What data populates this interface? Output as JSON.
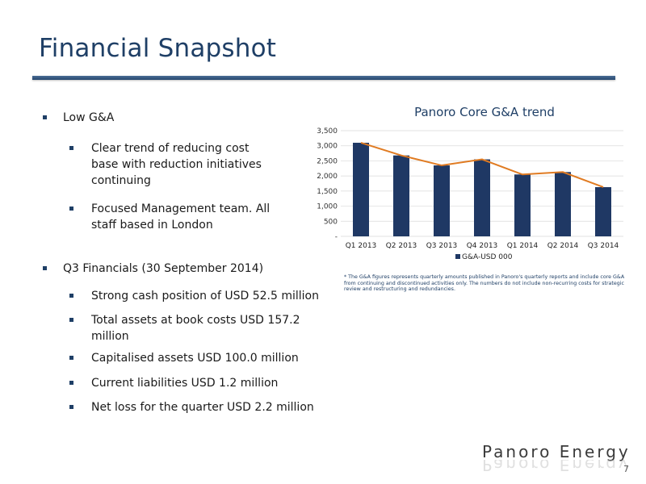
{
  "slide": {
    "title": "Financial Snapshot",
    "page_number": "7",
    "brand": "Panoro Energy"
  },
  "bullets": [
    {
      "level": 1,
      "text": "Low G&A"
    },
    {
      "level": 2,
      "text": "Clear trend of reducing cost base with reduction initiatives continuing"
    },
    {
      "level": 2,
      "text": "Focused Management team.  All staff based in London"
    },
    {
      "level": 1,
      "text": "Q3 Financials (30 September 2014)"
    },
    {
      "level": 2,
      "text": "Strong cash position of USD 52.5 million"
    },
    {
      "level": 2,
      "text": "Total assets at book costs USD 157.2 million"
    },
    {
      "level": 2,
      "text": "Capitalised assets USD 100.0 million"
    },
    {
      "level": 2,
      "text": "Current liabilities USD 1.2 million"
    },
    {
      "level": 2,
      "text": "Net loss for the quarter USD 2.2 million"
    }
  ],
  "chart_data": {
    "type": "bar",
    "title": "Panoro Core G&A trend",
    "categories": [
      "Q1 2013",
      "Q2 2013",
      "Q3 2013",
      "Q4 2013",
      "Q1 2014",
      "Q2 2014",
      "Q3 2014"
    ],
    "series": [
      {
        "name": "G&A-USD 000",
        "type": "bar",
        "color": "#1f3864",
        "values": [
          3100,
          2680,
          2350,
          2550,
          2050,
          2130,
          1630
        ]
      },
      {
        "type": "line",
        "color": "#e07b22",
        "values": [
          3100,
          2680,
          2350,
          2550,
          2050,
          2130,
          1630
        ]
      }
    ],
    "yticks": [
      "-",
      "500",
      "1,000",
      "1,500",
      "2,000",
      "2,500",
      "3,000",
      "3,500"
    ],
    "ylim": [
      0,
      3500
    ],
    "grid": true,
    "legend": "bottom",
    "footnote": "* The G&A figures represents quarterly amounts published in Panoro's quarterly reports and include core G&A from continuing and discontinued activities only. The numbers do not include non-recurring costs for strategic review and restructuring and redundancies."
  }
}
